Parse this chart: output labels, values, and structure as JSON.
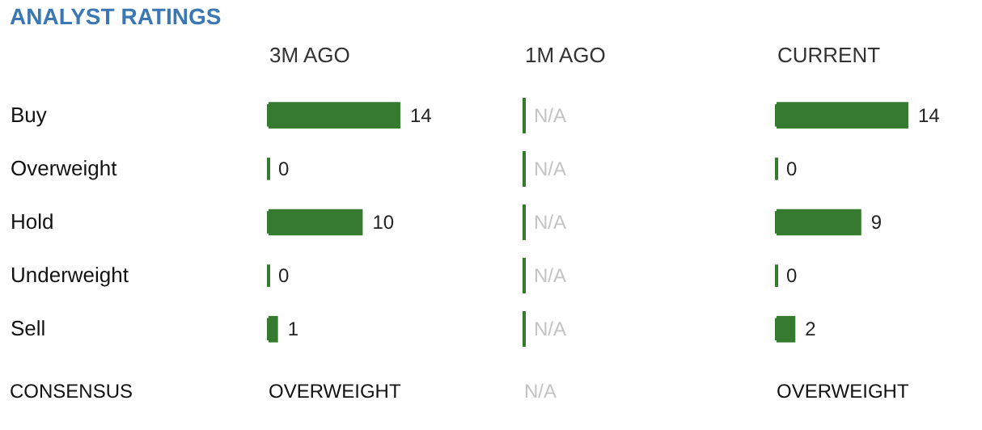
{
  "chart_data": [
    {
      "type": "bar",
      "orientation": "horizontal",
      "title": "ANALYST RATINGS",
      "xlabel": "3M AGO",
      "categories": [
        "Buy",
        "Overweight",
        "Hold",
        "Underweight",
        "Sell"
      ],
      "values": [
        14,
        0,
        10,
        0,
        1
      ],
      "color": "#357a2f",
      "data_labels": true,
      "annotations": [
        "CONSENSUS",
        "OVERWEIGHT"
      ]
    },
    {
      "type": "other",
      "xlabel": "1M AGO",
      "color": "#357a2f",
      "annotations": [
        "N/A",
        "N/A",
        "N/A",
        "N/A",
        "N/A",
        "N/A"
      ]
    },
    {
      "type": "bar",
      "orientation": "horizontal",
      "xlabel": "CURRENT",
      "categories": [
        "Buy",
        "Overweight",
        "Hold",
        "Underweight",
        "Sell"
      ],
      "values": [
        14,
        0,
        9,
        0,
        2
      ],
      "color": "#357a2f",
      "data_labels": true,
      "tick_labels": false,
      "annotations": [
        "OVERWEIGHT"
      ]
    }
  ]
}
